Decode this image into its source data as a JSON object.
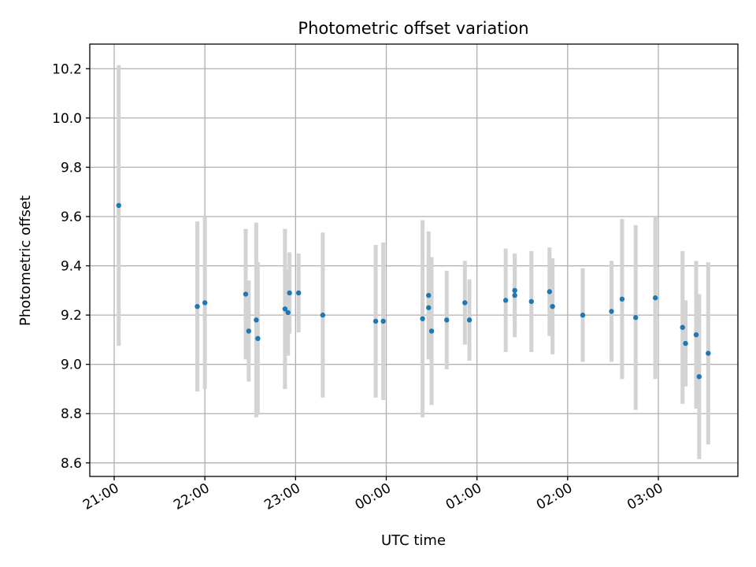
{
  "chart_data": {
    "type": "scatter",
    "title": "Photometric offset variation",
    "xlabel": "UTC time",
    "ylabel": "Photometric offset",
    "ylim": [
      8.545,
      10.3
    ],
    "yticks": [
      "8.6",
      "8.8",
      "9.0",
      "9.2",
      "9.4",
      "9.6",
      "9.8",
      "10.0",
      "10.2"
    ],
    "xticks": [
      "21:00",
      "22:00",
      "23:00",
      "00:00",
      "01:00",
      "02:00",
      "03:00"
    ],
    "grid": true,
    "colors": {
      "point": "#1f77b4",
      "errorbar": "#d3d3d3",
      "grid": "#b0b0b0"
    },
    "points": [
      {
        "t": "21:03",
        "y": 9.645,
        "err": 0.57
      },
      {
        "t": "21:55",
        "y": 9.235,
        "err": 0.345
      },
      {
        "t": "22:00",
        "y": 9.25,
        "err": 0.35
      },
      {
        "t": "22:27",
        "y": 9.285,
        "err": 0.265
      },
      {
        "t": "22:29",
        "y": 9.135,
        "err": 0.205
      },
      {
        "t": "22:34",
        "y": 9.18,
        "err": 0.395
      },
      {
        "t": "22:35",
        "y": 9.105,
        "err": 0.31
      },
      {
        "t": "22:53",
        "y": 9.225,
        "err": 0.325
      },
      {
        "t": "22:55",
        "y": 9.21,
        "err": 0.175
      },
      {
        "t": "22:56",
        "y": 9.29,
        "err": 0.165
      },
      {
        "t": "23:02",
        "y": 9.29,
        "err": 0.16
      },
      {
        "t": "23:18",
        "y": 9.2,
        "err": 0.335
      },
      {
        "t": "23:53",
        "y": 9.175,
        "err": 0.31
      },
      {
        "t": "23:58",
        "y": 9.175,
        "err": 0.32
      },
      {
        "t": "00:24",
        "y": 9.185,
        "err": 0.4
      },
      {
        "t": "00:28",
        "y": 9.28,
        "err": 0.26
      },
      {
        "t": "00:28",
        "y": 9.23,
        "err": 0.205
      },
      {
        "t": "00:30",
        "y": 9.135,
        "err": 0.3
      },
      {
        "t": "00:40",
        "y": 9.18,
        "err": 0.2
      },
      {
        "t": "00:52",
        "y": 9.25,
        "err": 0.17
      },
      {
        "t": "00:55",
        "y": 9.18,
        "err": 0.165
      },
      {
        "t": "01:19",
        "y": 9.26,
        "err": 0.21
      },
      {
        "t": "01:25",
        "y": 9.3,
        "err": 0.15
      },
      {
        "t": "01:25",
        "y": 9.28,
        "err": 0.17
      },
      {
        "t": "01:36",
        "y": 9.255,
        "err": 0.205
      },
      {
        "t": "01:48",
        "y": 9.295,
        "err": 0.18
      },
      {
        "t": "01:50",
        "y": 9.235,
        "err": 0.195
      },
      {
        "t": "02:10",
        "y": 9.2,
        "err": 0.19
      },
      {
        "t": "02:29",
        "y": 9.215,
        "err": 0.205
      },
      {
        "t": "02:36",
        "y": 9.265,
        "err": 0.325
      },
      {
        "t": "02:45",
        "y": 9.19,
        "err": 0.375
      },
      {
        "t": "02:58",
        "y": 9.27,
        "err": 0.33
      },
      {
        "t": "03:16",
        "y": 9.15,
        "err": 0.31
      },
      {
        "t": "03:18",
        "y": 9.085,
        "err": 0.175
      },
      {
        "t": "03:25",
        "y": 9.12,
        "err": 0.3
      },
      {
        "t": "03:27",
        "y": 8.95,
        "err": 0.335
      },
      {
        "t": "03:33",
        "y": 9.045,
        "err": 0.37
      }
    ]
  }
}
